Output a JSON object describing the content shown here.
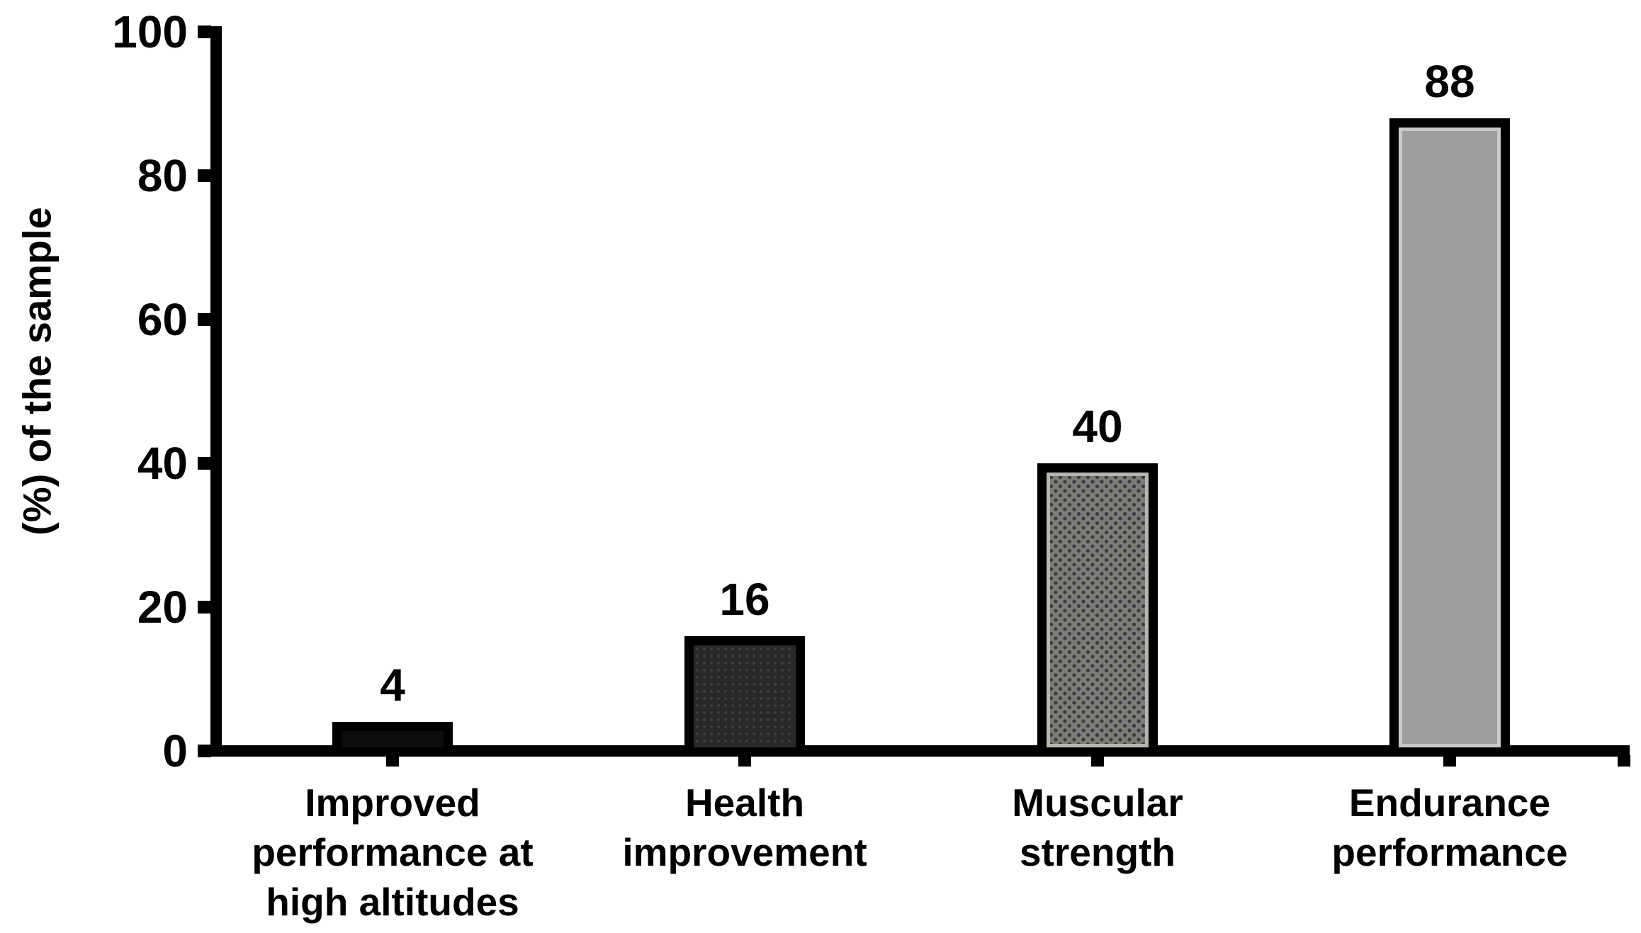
{
  "chart_data": {
    "type": "bar",
    "title": "",
    "categories": [
      "Improved performance at high altitudes",
      "Health improvement",
      "Muscular strength",
      "Endurance performance"
    ],
    "values": [
      4,
      16,
      40,
      88
    ],
    "data_labels": [
      "4",
      "16",
      "40",
      "88"
    ],
    "xlabel": "",
    "ylabel": "(%) of the sample",
    "ylim": [
      0,
      100
    ],
    "yticks": [
      "0",
      "20",
      "40",
      "60",
      "80",
      "100"
    ],
    "grid": false,
    "legend": "none",
    "background_color": "#ffffff",
    "axis_color": "#000000",
    "text_color": "#000000",
    "bar_styles": [
      {
        "name": "solid-black",
        "fill": "#0d0d0d",
        "pattern": "none",
        "border": "#000000"
      },
      {
        "name": "charcoal-speckle",
        "fill": "#282828",
        "pattern": "speckle",
        "dot_color": "#414141",
        "border": "#000000"
      },
      {
        "name": "gray-halftone",
        "fill": "#7d7d77",
        "pattern": "dots",
        "dot_color": "#3b3b45",
        "inner_edge": "#b6b6b0",
        "border": "#000000"
      },
      {
        "name": "light-gray",
        "fill": "#9e9e9e",
        "pattern": "none",
        "inner_edge": "#c9c9c9",
        "border": "#000000"
      }
    ]
  }
}
